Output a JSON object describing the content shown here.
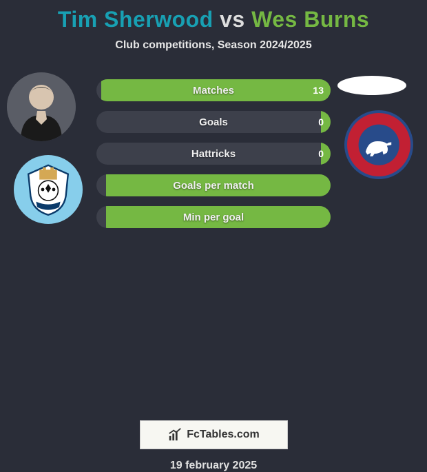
{
  "title": {
    "player1": "Tim Sherwood",
    "vs": "vs",
    "player2": "Wes Burns",
    "player1_color": "#18a0b3",
    "player2_color": "#75b843",
    "vs_color": "#dddddd",
    "fontsize": 32
  },
  "subtitle": "Club competitions, Season 2024/2025",
  "background_color": "#2a2d38",
  "stats": {
    "bar_bg": "#3d404b",
    "left_color": "#18a0b3",
    "right_color": "#75b843",
    "rows": [
      {
        "label": "Matches",
        "left_val": "",
        "right_val": "13",
        "left_pct": 0,
        "right_pct": 98
      },
      {
        "label": "Goals",
        "left_val": "",
        "right_val": "0",
        "left_pct": 0,
        "right_pct": 4
      },
      {
        "label": "Hattricks",
        "left_val": "",
        "right_val": "0",
        "left_pct": 0,
        "right_pct": 4
      },
      {
        "label": "Goals per match",
        "left_val": "",
        "right_val": "",
        "left_pct": 0,
        "right_pct": 96
      },
      {
        "label": "Min per goal",
        "left_val": "",
        "right_val": "",
        "left_pct": 0,
        "right_pct": 96
      }
    ]
  },
  "brand": "FcTables.com",
  "date": "19 february 2025",
  "avatars": {
    "left_player_bg": "#3b3e49",
    "left_crest_bg": "#87ceeb",
    "right_oval_bg": "#ffffff",
    "right_crest_bg": "#c22033",
    "right_crest_border": "#284b8a"
  }
}
